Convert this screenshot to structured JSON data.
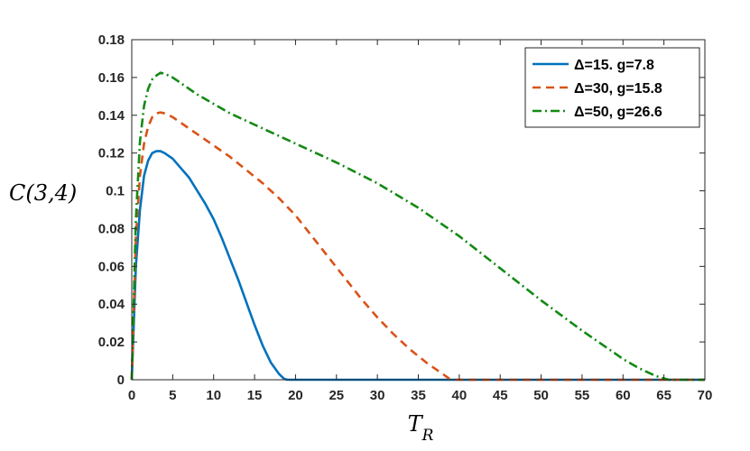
{
  "chart_data": {
    "type": "line",
    "xlabel": "T_R",
    "ylabel": "C(3,4)",
    "xlim": [
      0,
      70
    ],
    "ylim": [
      0,
      0.18
    ],
    "xticks": [
      0,
      5,
      10,
      15,
      20,
      25,
      30,
      35,
      40,
      45,
      50,
      55,
      60,
      65,
      70
    ],
    "yticks": [
      0,
      0.02,
      0.04,
      0.06,
      0.08,
      0.1,
      0.12,
      0.14,
      0.16,
      0.18
    ],
    "ytick_labels": [
      "0",
      "0.02",
      "0.04",
      "0.06",
      "0.08",
      "0.1",
      "0.12",
      "0.14",
      "0.16",
      "0.18"
    ],
    "grid": false,
    "legend_position": "top-right",
    "series": [
      {
        "name": "Δ=15. g=7.8",
        "color": "#0072BD",
        "dash": "solid",
        "x": [
          0,
          0.5,
          1,
          1.5,
          2,
          2.5,
          3,
          3.5,
          4,
          5,
          6,
          7,
          8,
          9,
          10,
          11,
          12,
          13,
          14,
          15,
          16,
          17,
          18,
          18.6,
          19,
          20,
          25,
          30,
          35,
          40,
          45,
          50,
          55,
          60,
          65,
          70
        ],
        "y": [
          0,
          0.06,
          0.09,
          0.108,
          0.116,
          0.12,
          0.121,
          0.121,
          0.12,
          0.117,
          0.112,
          0.107,
          0.1,
          0.093,
          0.085,
          0.075,
          0.064,
          0.053,
          0.041,
          0.029,
          0.018,
          0.009,
          0.003,
          0.0005,
          0,
          0,
          0,
          0,
          0,
          0,
          0,
          0,
          0,
          0,
          0,
          0
        ]
      },
      {
        "name": "Δ=30, g=15.8",
        "color": "#D95319",
        "dash": "dashed",
        "x": [
          0,
          0.5,
          1,
          1.5,
          2,
          2.5,
          3,
          3.5,
          4,
          5,
          6,
          8,
          10,
          12,
          14,
          16,
          18,
          20,
          22,
          24,
          26,
          28,
          30,
          32,
          34,
          36,
          37,
          38,
          38.8,
          39.5,
          40,
          45,
          50,
          55,
          60,
          65,
          70
        ],
        "y": [
          0,
          0.075,
          0.108,
          0.125,
          0.134,
          0.139,
          0.141,
          0.1415,
          0.141,
          0.139,
          0.136,
          0.13,
          0.124,
          0.118,
          0.111,
          0.104,
          0.096,
          0.087,
          0.076,
          0.065,
          0.054,
          0.043,
          0.033,
          0.024,
          0.016,
          0.009,
          0.006,
          0.003,
          0.0005,
          0,
          0,
          0,
          0,
          0,
          0,
          0,
          0
        ]
      },
      {
        "name": "Δ=50, g=26.6",
        "color": "#138A13",
        "dash": "dashdot",
        "x": [
          0,
          0.5,
          1,
          1.5,
          2,
          2.5,
          3,
          3.5,
          4,
          5,
          6,
          8,
          10,
          12,
          15,
          20,
          25,
          30,
          35,
          40,
          45,
          50,
          55,
          60,
          62,
          64,
          65,
          65.6,
          66,
          70
        ],
        "y": [
          0,
          0.085,
          0.126,
          0.145,
          0.154,
          0.159,
          0.161,
          0.1625,
          0.162,
          0.16,
          0.157,
          0.151,
          0.146,
          0.141,
          0.135,
          0.125,
          0.115,
          0.104,
          0.091,
          0.076,
          0.059,
          0.042,
          0.026,
          0.011,
          0.006,
          0.002,
          0.0007,
          0,
          0,
          0
        ]
      }
    ]
  }
}
